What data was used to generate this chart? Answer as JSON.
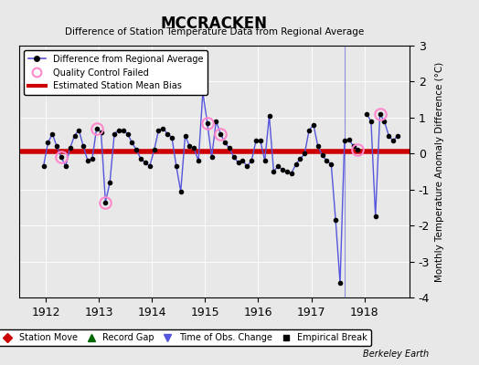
{
  "title": "MCCRACKEN",
  "subtitle": "Difference of Station Temperature Data from Regional Average",
  "ylabel": "Monthly Temperature Anomaly Difference (°C)",
  "background_color": "#e8e8e8",
  "plot_bg_color": "#e8e8e8",
  "ylim": [
    -4,
    3
  ],
  "xlim_start": 1911.5,
  "xlim_end": 1918.85,
  "bias_line_y": 0.05,
  "bias_line_color": "#cc0000",
  "line_color": "#5555dd",
  "qc_color": "#ff88cc",
  "segment1_x": [
    1911.958,
    1912.042,
    1912.125,
    1912.208,
    1912.292,
    1912.375,
    1912.458,
    1912.542,
    1912.625,
    1912.708,
    1912.792,
    1912.875,
    1912.958,
    1913.042,
    1913.125,
    1913.208,
    1913.292,
    1913.375,
    1913.458,
    1913.542,
    1913.625,
    1913.708,
    1913.792,
    1913.875,
    1913.958,
    1914.042,
    1914.125,
    1914.208,
    1914.292,
    1914.375,
    1914.458,
    1914.542,
    1914.625,
    1914.708,
    1914.792,
    1914.875,
    1914.958,
    1915.042,
    1915.125,
    1915.208,
    1915.292,
    1915.375,
    1915.458,
    1915.542,
    1915.625,
    1915.708,
    1915.792,
    1915.875,
    1915.958,
    1916.042,
    1916.125,
    1916.208,
    1916.292,
    1916.375,
    1916.458,
    1916.542,
    1916.625,
    1916.708,
    1916.792,
    1916.875,
    1916.958,
    1917.042,
    1917.125,
    1917.208,
    1917.292,
    1917.375,
    1917.458,
    1917.542,
    1917.625,
    1917.708,
    1917.792,
    1917.875
  ],
  "segment1_y": [
    -0.35,
    0.3,
    0.55,
    0.2,
    -0.1,
    -0.35,
    0.15,
    0.5,
    0.65,
    0.2,
    -0.2,
    -0.15,
    0.7,
    0.6,
    -1.35,
    -0.8,
    0.55,
    0.65,
    0.65,
    0.55,
    0.3,
    0.1,
    -0.15,
    -0.25,
    -0.35,
    0.1,
    0.65,
    0.7,
    0.55,
    0.45,
    -0.35,
    -1.05,
    0.5,
    0.2,
    0.15,
    -0.2,
    1.7,
    0.85,
    -0.1,
    0.9,
    0.55,
    0.3,
    0.15,
    -0.1,
    -0.25,
    -0.2,
    -0.35,
    -0.2,
    0.35,
    0.35,
    -0.2,
    1.05,
    -0.5,
    -0.35,
    -0.45,
    -0.5,
    -0.55,
    -0.3,
    -0.15,
    0.0,
    0.65,
    0.8,
    0.2,
    -0.05,
    -0.2,
    -0.3,
    -1.85,
    -3.6,
    0.35,
    0.4,
    0.2,
    0.1
  ],
  "segment2_x": [
    1918.042,
    1918.125,
    1918.208,
    1918.292,
    1918.375,
    1918.458,
    1918.542,
    1918.625
  ],
  "segment2_y": [
    1.1,
    0.9,
    -1.75,
    1.1,
    0.9,
    0.5,
    0.35,
    0.5
  ],
  "qc_failed_x": [
    1912.292,
    1912.958,
    1913.125,
    1915.042,
    1915.292,
    1917.875,
    1918.292
  ],
  "qc_failed_y": [
    -0.1,
    0.7,
    -1.35,
    0.85,
    0.55,
    0.1,
    1.1
  ],
  "obs_change_x": 1917.625,
  "xticks": [
    1912,
    1913,
    1914,
    1915,
    1916,
    1917,
    1918
  ],
  "yticks": [
    -4,
    -3,
    -2,
    -1,
    0,
    1,
    2,
    3
  ]
}
